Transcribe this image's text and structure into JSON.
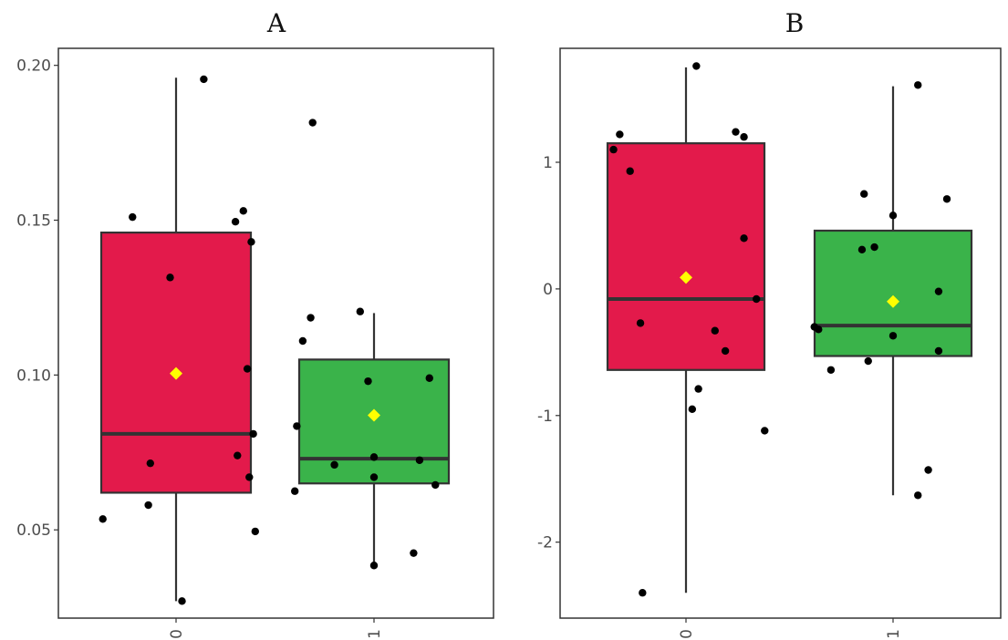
{
  "chart_data": [
    {
      "type": "boxplot",
      "title": "A",
      "categories": [
        "0",
        "1"
      ],
      "ylim": [
        0.0215,
        0.2055
      ],
      "yticks": [
        0.05,
        0.1,
        0.15,
        0.2
      ],
      "ytick_labels": [
        "0.05",
        "0.10",
        "0.15",
        "0.20"
      ],
      "grid": false,
      "boxes": [
        {
          "category": "0",
          "color": "#e31a4b",
          "whisker_low": 0.027,
          "q1": 0.062,
          "median": 0.081,
          "q3": 0.146,
          "whisker_high": 0.196,
          "mean": 0.1005
        },
        {
          "category": "1",
          "color": "#3ab34a",
          "whisker_low": 0.039,
          "q1": 0.065,
          "median": 0.073,
          "q3": 0.105,
          "whisker_high": 0.12,
          "mean": 0.087
        }
      ],
      "points": [
        {
          "x": -0.37,
          "y": 0.0535
        },
        {
          "x": -0.22,
          "y": 0.151
        },
        {
          "x": -0.13,
          "y": 0.0715
        },
        {
          "x": -0.14,
          "y": 0.058
        },
        {
          "x": -0.03,
          "y": 0.1315
        },
        {
          "x": 0.03,
          "y": 0.027
        },
        {
          "x": 0.14,
          "y": 0.1955
        },
        {
          "x": 0.3,
          "y": 0.1495
        },
        {
          "x": 0.34,
          "y": 0.153
        },
        {
          "x": 0.36,
          "y": 0.102
        },
        {
          "x": 0.38,
          "y": 0.143
        },
        {
          "x": 0.37,
          "y": 0.067
        },
        {
          "x": 0.39,
          "y": 0.081
        },
        {
          "x": 0.31,
          "y": 0.074
        },
        {
          "x": 0.4,
          "y": 0.0495
        },
        {
          "x": 0.6,
          "y": 0.0625
        },
        {
          "x": 0.61,
          "y": 0.0835
        },
        {
          "x": 0.64,
          "y": 0.111
        },
        {
          "x": 0.68,
          "y": 0.1185
        },
        {
          "x": 0.69,
          "y": 0.1815
        },
        {
          "x": 0.8,
          "y": 0.071
        },
        {
          "x": 0.93,
          "y": 0.1205
        },
        {
          "x": 0.97,
          "y": 0.098
        },
        {
          "x": 1.0,
          "y": 0.0735
        },
        {
          "x": 1.0,
          "y": 0.067
        },
        {
          "x": 1.0,
          "y": 0.0385
        },
        {
          "x": 1.2,
          "y": 0.0425
        },
        {
          "x": 1.23,
          "y": 0.0725
        },
        {
          "x": 1.28,
          "y": 0.099
        },
        {
          "x": 1.31,
          "y": 0.0645
        }
      ]
    },
    {
      "type": "boxplot",
      "title": "B",
      "categories": [
        "0",
        "1"
      ],
      "ylim": [
        -2.6,
        1.9
      ],
      "yticks": [
        -2,
        -1,
        0,
        1
      ],
      "ytick_labels": [
        "-2",
        "-1",
        "0",
        "1"
      ],
      "grid": false,
      "boxes": [
        {
          "category": "0",
          "color": "#e31a4b",
          "whisker_low": -2.4,
          "q1": -0.64,
          "median": -0.08,
          "q3": 1.15,
          "whisker_high": 1.75,
          "mean": 0.09
        },
        {
          "category": "1",
          "color": "#3ab34a",
          "whisker_low": -1.63,
          "q1": -0.53,
          "median": -0.29,
          "q3": 0.46,
          "whisker_high": 1.6,
          "mean": -0.1
        }
      ],
      "points": [
        {
          "x": -0.35,
          "y": 1.1
        },
        {
          "x": -0.32,
          "y": 1.22
        },
        {
          "x": -0.27,
          "y": 0.93
        },
        {
          "x": -0.22,
          "y": -0.27
        },
        {
          "x": -0.21,
          "y": -2.4
        },
        {
          "x": 0.03,
          "y": -0.95
        },
        {
          "x": 0.06,
          "y": -0.79
        },
        {
          "x": 0.05,
          "y": 1.76
        },
        {
          "x": 0.14,
          "y": -0.33
        },
        {
          "x": 0.19,
          "y": -0.49
        },
        {
          "x": 0.24,
          "y": 1.24
        },
        {
          "x": 0.28,
          "y": 1.2
        },
        {
          "x": 0.28,
          "y": 0.4
        },
        {
          "x": 0.34,
          "y": -0.08
        },
        {
          "x": 0.38,
          "y": -1.12
        },
        {
          "x": 0.62,
          "y": -0.3
        },
        {
          "x": 0.64,
          "y": -0.32
        },
        {
          "x": 0.7,
          "y": -0.64
        },
        {
          "x": 0.85,
          "y": 0.31
        },
        {
          "x": 0.86,
          "y": 0.75
        },
        {
          "x": 0.88,
          "y": -0.57
        },
        {
          "x": 0.91,
          "y": 0.33
        },
        {
          "x": 1.0,
          "y": -0.37
        },
        {
          "x": 1.0,
          "y": 0.58
        },
        {
          "x": 1.12,
          "y": -1.63
        },
        {
          "x": 1.12,
          "y": 1.61
        },
        {
          "x": 1.17,
          "y": -1.43
        },
        {
          "x": 1.22,
          "y": -0.49
        },
        {
          "x": 1.22,
          "y": -0.02
        },
        {
          "x": 1.26,
          "y": 0.71
        }
      ]
    }
  ]
}
